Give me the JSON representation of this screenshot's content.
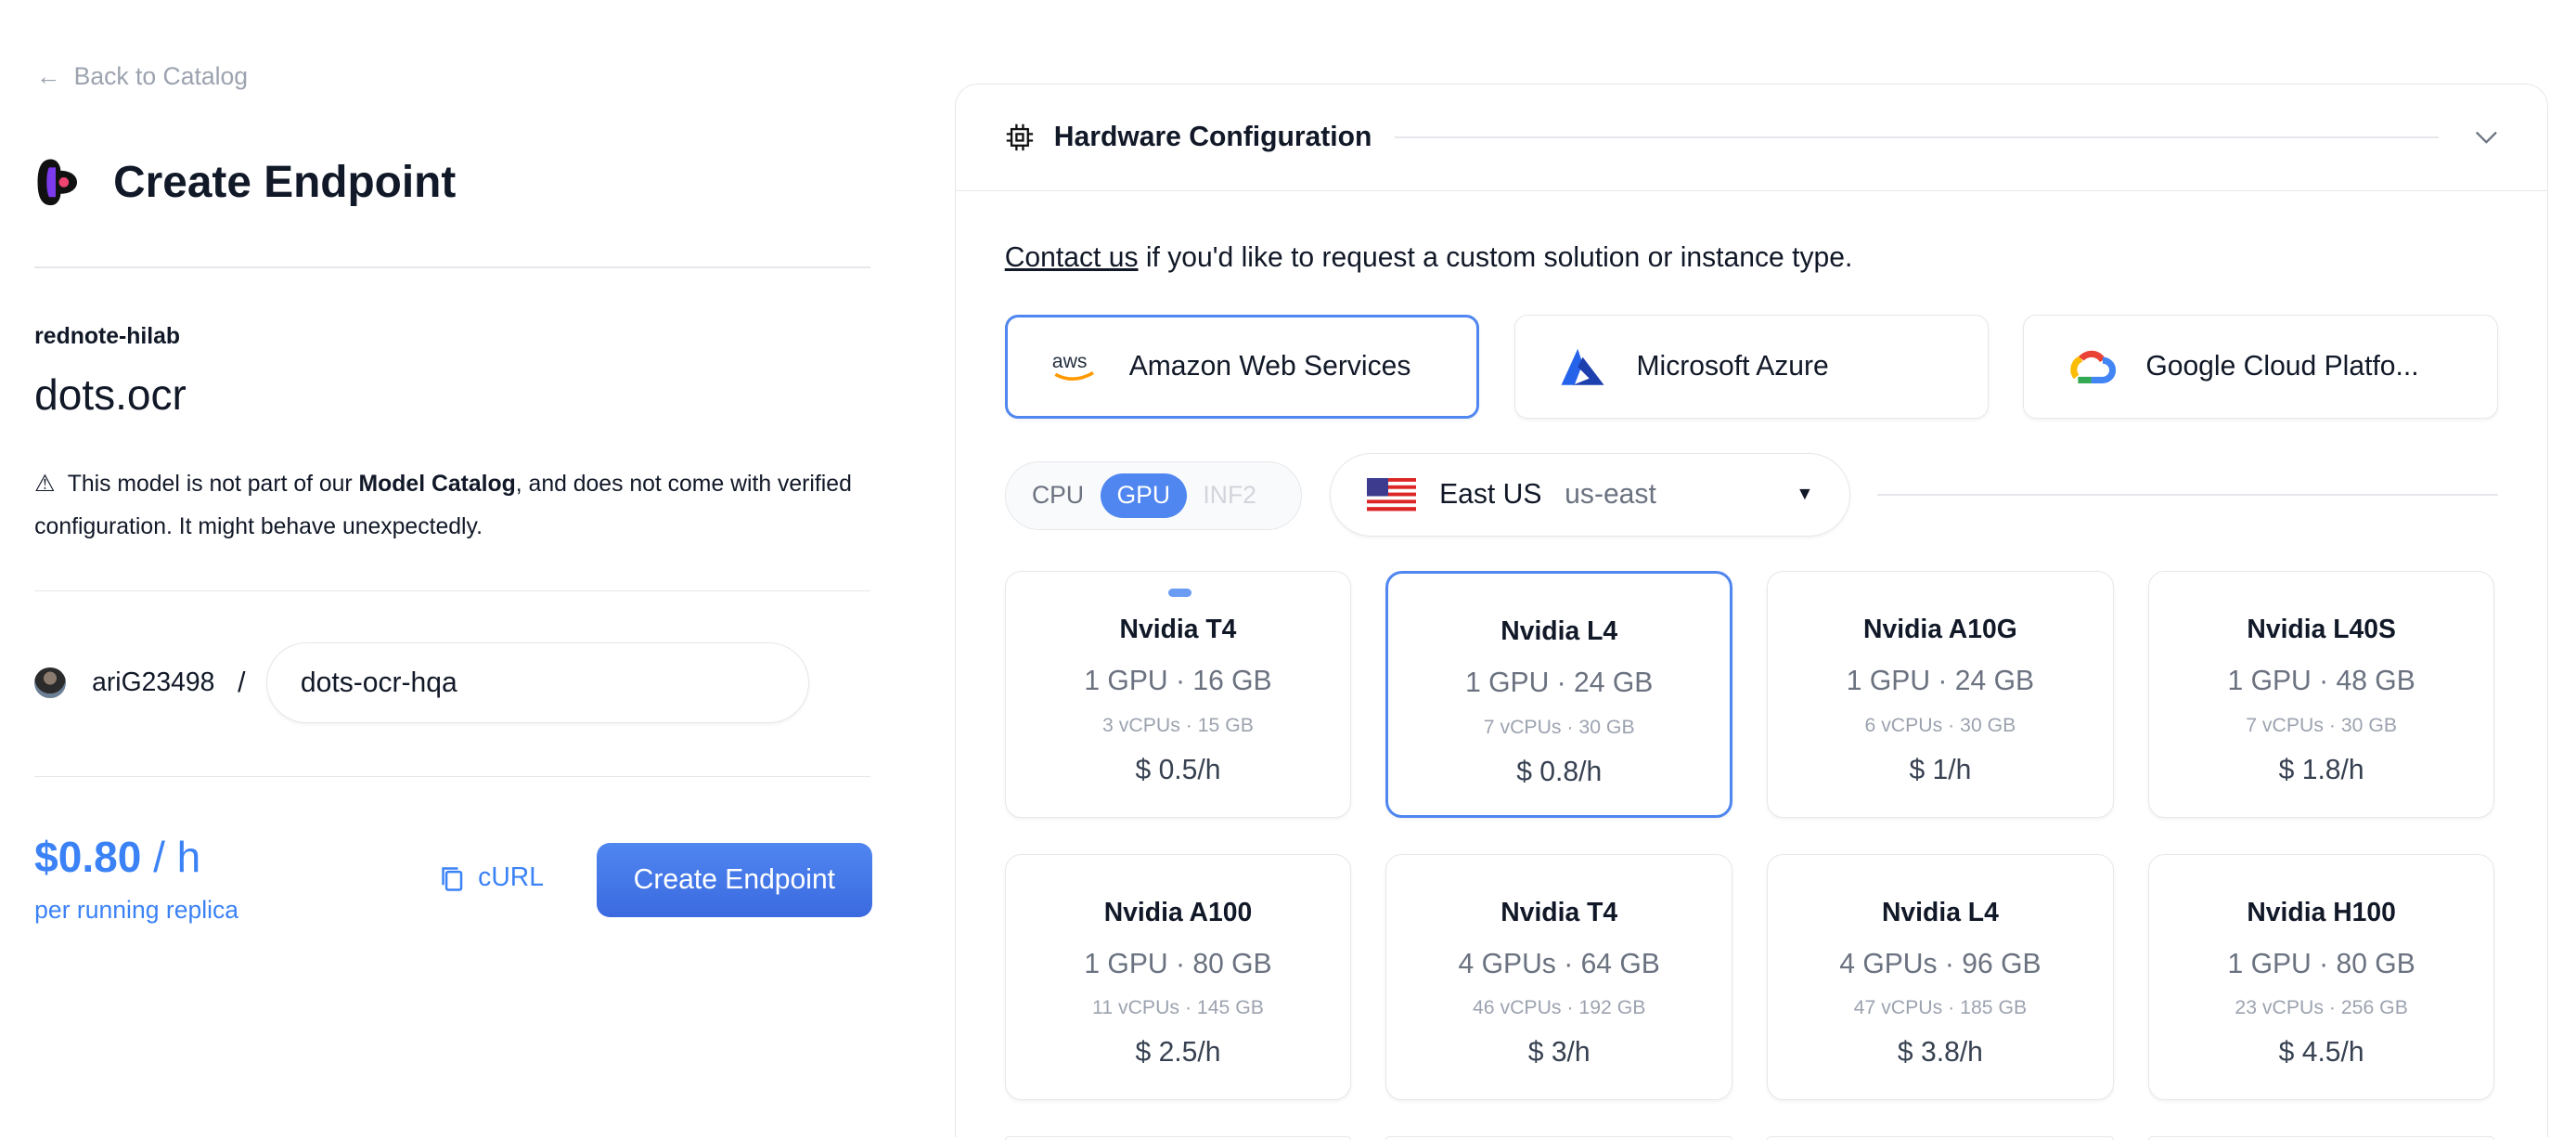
{
  "nav": {
    "back_label": "Back to Catalog"
  },
  "header": {
    "title": "Create Endpoint"
  },
  "model": {
    "org": "rednote-hilab",
    "name": "dots.ocr"
  },
  "warning": {
    "prefix": "This model is not part of our ",
    "bold": "Model Catalog",
    "suffix": ", and does not come with verified configuration. It might behave unexpectedly."
  },
  "endpoint": {
    "owner": "ariG23498",
    "separator": "/",
    "name_value": "dots-ocr-hqa"
  },
  "pricing": {
    "amount": "$0.80",
    "unit": " / h",
    "note": "per running replica"
  },
  "actions": {
    "curl_label": "cURL",
    "create_label": "Create Endpoint"
  },
  "hardware": {
    "title": "Hardware Configuration",
    "contact_link": "Contact us",
    "contact_text": " if you'd like to request a custom solution or instance type.",
    "providers": [
      {
        "label": "Amazon Web Services",
        "icon": "aws-logo",
        "selected": true
      },
      {
        "label": "Microsoft Azure",
        "icon": "azure-logo",
        "selected": false
      },
      {
        "label": "Google Cloud Platfo...",
        "icon": "gcp-logo",
        "selected": false
      }
    ],
    "accelerator_types": [
      {
        "label": "CPU",
        "state": "available"
      },
      {
        "label": "GPU",
        "state": "selected"
      },
      {
        "label": "INF2",
        "state": "disabled"
      }
    ],
    "region": {
      "name": "East US",
      "code": "us-east",
      "flag": "us-flag"
    },
    "instances": [
      {
        "name": "Nvidia T4",
        "gpu": "1 GPU · 16 GB",
        "cpu": "3 vCPUs · 15 GB",
        "price": "$ 0.5/h",
        "selected": false,
        "marker": true
      },
      {
        "name": "Nvidia L4",
        "gpu": "1 GPU · 24 GB",
        "cpu": "7 vCPUs · 30 GB",
        "price": "$ 0.8/h",
        "selected": true
      },
      {
        "name": "Nvidia A10G",
        "gpu": "1 GPU · 24 GB",
        "cpu": "6 vCPUs · 30 GB",
        "price": "$ 1/h",
        "selected": false
      },
      {
        "name": "Nvidia L40S",
        "gpu": "1 GPU · 48 GB",
        "cpu": "7 vCPUs · 30 GB",
        "price": "$ 1.8/h",
        "selected": false
      },
      {
        "name": "Nvidia A100",
        "gpu": "1 GPU · 80 GB",
        "cpu": "11 vCPUs · 145 GB",
        "price": "$ 2.5/h",
        "selected": false
      },
      {
        "name": "Nvidia T4",
        "gpu": "4 GPUs · 64 GB",
        "cpu": "46 vCPUs · 192 GB",
        "price": "$ 3/h",
        "selected": false
      },
      {
        "name": "Nvidia L4",
        "gpu": "4 GPUs · 96 GB",
        "cpu": "47 vCPUs · 185 GB",
        "price": "$ 3.8/h",
        "selected": false
      },
      {
        "name": "Nvidia H100",
        "gpu": "1 GPU · 80 GB",
        "cpu": "23 vCPUs · 256 GB",
        "price": "$ 4.5/h",
        "selected": false
      }
    ]
  },
  "colors": {
    "accent": "#4f86f0",
    "border": "#e5e7eb",
    "muted": "#6b7280"
  }
}
